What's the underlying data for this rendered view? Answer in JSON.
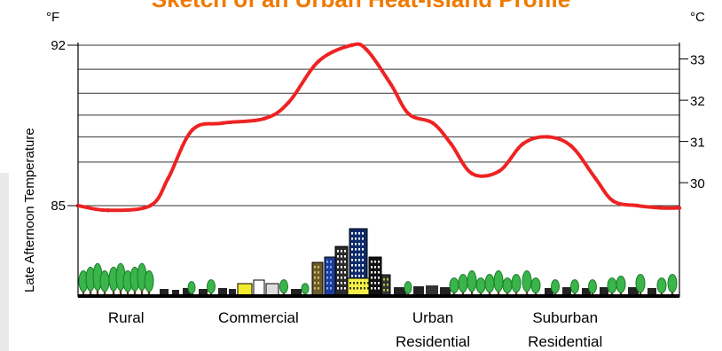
{
  "chart_data": {
    "type": "line",
    "title": "Sketch of an Urban Heat-Island Profile",
    "ylabel": "Late Afternoon Temperature",
    "y_unit_left": "°F",
    "y_unit_right": "°C",
    "ylim_f": [
      84.3,
      92.5
    ],
    "yticks_f": [
      {
        "value": 92,
        "label": "92"
      },
      {
        "value": 85,
        "label": "85"
      }
    ],
    "yticks_c": [
      {
        "value": 33,
        "label": "33"
      },
      {
        "value": 32,
        "label": "32"
      },
      {
        "value": 31,
        "label": "31"
      },
      {
        "value": 30,
        "label": "30"
      }
    ],
    "grid_f": [
      92,
      90.95,
      89.9,
      88.95,
      88.0,
      86.9,
      85.0
    ],
    "categories": [
      "Rural",
      "Commercial",
      "Urban Residential",
      "Suburban Residential"
    ],
    "category_labels": [
      {
        "lines": [
          "Rural"
        ]
      },
      {
        "lines": [
          "Commercial"
        ]
      },
      {
        "lines": [
          "Urban",
          "Residential"
        ]
      },
      {
        "lines": [
          "Suburban",
          "Residential"
        ]
      }
    ],
    "category_x": [
      0.08,
      0.3,
      0.59,
      0.81
    ],
    "xlim": [
      0,
      1
    ],
    "series": [
      {
        "x": [
          0.0,
          0.05,
          0.12,
          0.15,
          0.19,
          0.24,
          0.31,
          0.35,
          0.4,
          0.455,
          0.48,
          0.52,
          0.55,
          0.59,
          0.62,
          0.655,
          0.7,
          0.74,
          0.78,
          0.82,
          0.86,
          0.89,
          0.93,
          0.97,
          1.0
        ],
        "values": [
          85.0,
          84.8,
          85.0,
          86.2,
          88.3,
          88.6,
          88.8,
          89.5,
          91.3,
          92.0,
          91.8,
          90.3,
          89.0,
          88.6,
          87.7,
          86.4,
          86.5,
          87.7,
          88.0,
          87.6,
          86.2,
          85.2,
          85.0,
          84.9,
          84.9
        ],
        "color": "#ee2222"
      }
    ],
    "colors": {
      "title": "#f07a00",
      "line": "#ee2222",
      "trees": "#39b54a"
    }
  }
}
